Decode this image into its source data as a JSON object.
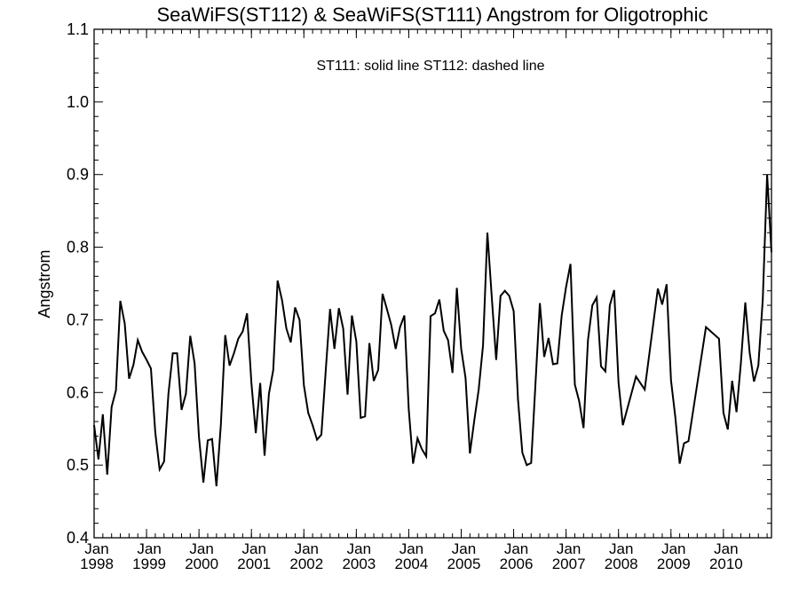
{
  "chart_data": {
    "type": "line",
    "title": "SeaWiFS(ST112) & SeaWiFS(ST111)  Angstrom for Oligotrophic",
    "annotation": "ST111: solid line   ST112: dashed line",
    "xlabel": "",
    "ylabel": "Angstrom",
    "ylim": [
      0.4,
      1.1
    ],
    "y_ticks": [
      "0.4",
      "0.5",
      "0.6",
      "0.7",
      "0.8",
      "0.9",
      "1.0",
      "1.1"
    ],
    "xlim": [
      "1998-01",
      "2010-12"
    ],
    "x_ticks": [
      {
        "month": "Jan",
        "year": "1998"
      },
      {
        "month": "Jan",
        "year": "1999"
      },
      {
        "month": "Jan",
        "year": "2000"
      },
      {
        "month": "Jan",
        "year": "2001"
      },
      {
        "month": "Jan",
        "year": "2002"
      },
      {
        "month": "Jan",
        "year": "2003"
      },
      {
        "month": "Jan",
        "year": "2004"
      },
      {
        "month": "Jan",
        "year": "2005"
      },
      {
        "month": "Jan",
        "year": "2006"
      },
      {
        "month": "Jan",
        "year": "2007"
      },
      {
        "month": "Jan",
        "year": "2008"
      },
      {
        "month": "Jan",
        "year": "2009"
      },
      {
        "month": "Jan",
        "year": "2010"
      }
    ],
    "grid": false,
    "series": [
      {
        "style": "solid",
        "color": "#000000",
        "points": [
          [
            "1998-01",
            0.555
          ],
          [
            "1998-02",
            0.508
          ],
          [
            "1998-03",
            0.57
          ],
          [
            "1998-04",
            0.487
          ],
          [
            "1998-05",
            0.58
          ],
          [
            "1998-06",
            0.603
          ],
          [
            "1998-07",
            0.726
          ],
          [
            "1998-08",
            0.695
          ],
          [
            "1998-09",
            0.619
          ],
          [
            "1998-10",
            0.638
          ],
          [
            "1998-11",
            0.672
          ],
          [
            "1998-12",
            0.656
          ],
          [
            "1999-01",
            0.645
          ],
          [
            "1999-02",
            0.633
          ],
          [
            "1999-03",
            0.545
          ],
          [
            "1999-04",
            0.494
          ],
          [
            "1999-05",
            0.505
          ],
          [
            "1999-06",
            0.598
          ],
          [
            "1999-07",
            0.654
          ],
          [
            "1999-08",
            0.654
          ],
          [
            "1999-09",
            0.576
          ],
          [
            "1999-10",
            0.598
          ],
          [
            "1999-11",
            0.678
          ],
          [
            "1999-12",
            0.64
          ],
          [
            "2000-01",
            0.539
          ],
          [
            "2000-02",
            0.476
          ],
          [
            "2000-03",
            0.534
          ],
          [
            "2000-04",
            0.536
          ],
          [
            "2000-05",
            0.471
          ],
          [
            "2000-06",
            0.556
          ],
          [
            "2000-07",
            0.679
          ],
          [
            "2000-08",
            0.637
          ],
          [
            "2000-09",
            0.654
          ],
          [
            "2000-10",
            0.674
          ],
          [
            "2000-11",
            0.684
          ],
          [
            "2000-12",
            0.709
          ],
          [
            "2001-01",
            0.613
          ],
          [
            "2001-02",
            0.544
          ],
          [
            "2001-03",
            0.613
          ],
          [
            "2001-04",
            0.513
          ],
          [
            "2001-05",
            0.598
          ],
          [
            "2001-06",
            0.631
          ],
          [
            "2001-07",
            0.754
          ],
          [
            "2001-08",
            0.727
          ],
          [
            "2001-09",
            0.688
          ],
          [
            "2001-10",
            0.669
          ],
          [
            "2001-11",
            0.717
          ],
          [
            "2001-12",
            0.7
          ],
          [
            "2002-01",
            0.61
          ],
          [
            "2002-02",
            0.572
          ],
          [
            "2002-03",
            0.555
          ],
          [
            "2002-04",
            0.535
          ],
          [
            "2002-05",
            0.542
          ],
          [
            "2002-06",
            0.63
          ],
          [
            "2002-07",
            0.715
          ],
          [
            "2002-08",
            0.66
          ],
          [
            "2002-09",
            0.716
          ],
          [
            "2002-10",
            0.688
          ],
          [
            "2002-11",
            0.597
          ],
          [
            "2002-12",
            0.706
          ],
          [
            "2003-01",
            0.67
          ],
          [
            "2003-02",
            0.565
          ],
          [
            "2003-03",
            0.567
          ],
          [
            "2003-04",
            0.668
          ],
          [
            "2003-05",
            0.616
          ],
          [
            "2003-06",
            0.631
          ],
          [
            "2003-07",
            0.736
          ],
          [
            "2003-08",
            0.715
          ],
          [
            "2003-09",
            0.693
          ],
          [
            "2003-10",
            0.66
          ],
          [
            "2003-11",
            0.69
          ],
          [
            "2003-12",
            0.706
          ],
          [
            "2004-01",
            0.577
          ],
          [
            "2004-02",
            0.502
          ],
          [
            "2004-03",
            0.537
          ],
          [
            "2004-04",
            0.522
          ],
          [
            "2004-05",
            0.512
          ],
          [
            "2004-06",
            0.705
          ],
          [
            "2004-07",
            0.709
          ],
          [
            "2004-08",
            0.728
          ],
          [
            "2004-09",
            0.685
          ],
          [
            "2004-10",
            0.672
          ],
          [
            "2004-11",
            0.627
          ],
          [
            "2004-12",
            0.744
          ],
          [
            "2005-01",
            0.66
          ],
          [
            "2005-02",
            0.62
          ],
          [
            "2005-03",
            0.516
          ],
          [
            "2005-04",
            0.562
          ],
          [
            "2005-05",
            0.604
          ],
          [
            "2005-06",
            0.665
          ],
          [
            "2005-07",
            0.82
          ],
          [
            "2005-08",
            0.73
          ],
          [
            "2005-09",
            0.645
          ],
          [
            "2005-10",
            0.733
          ],
          [
            "2005-11",
            0.74
          ],
          [
            "2005-12",
            0.733
          ],
          [
            "2006-01",
            0.712
          ],
          [
            "2006-02",
            0.59
          ],
          [
            "2006-03",
            0.517
          ],
          [
            "2006-04",
            0.5
          ],
          [
            "2006-05",
            0.503
          ],
          [
            "2006-06",
            0.613
          ],
          [
            "2006-07",
            0.723
          ],
          [
            "2006-08",
            0.649
          ],
          [
            "2006-09",
            0.675
          ],
          [
            "2006-10",
            0.639
          ],
          [
            "2006-11",
            0.64
          ],
          [
            "2006-12",
            0.706
          ],
          [
            "2007-01",
            0.745
          ],
          [
            "2007-02",
            0.777
          ],
          [
            "2007-03",
            0.611
          ],
          [
            "2007-04",
            0.588
          ],
          [
            "2007-05",
            0.551
          ],
          [
            "2007-06",
            0.672
          ],
          [
            "2007-07",
            0.72
          ],
          [
            "2007-08",
            0.731
          ],
          [
            "2007-09",
            0.636
          ],
          [
            "2007-10",
            0.629
          ],
          [
            "2007-11",
            0.72
          ],
          [
            "2007-12",
            0.741
          ],
          [
            "2008-01",
            0.614
          ],
          [
            "2008-02",
            0.555
          ],
          [
            "2008-05",
            0.622
          ],
          [
            "2008-07",
            0.604
          ],
          [
            "2008-10",
            0.743
          ],
          [
            "2008-11",
            0.721
          ],
          [
            "2008-12",
            0.749
          ],
          [
            "2009-01",
            0.617
          ],
          [
            "2009-02",
            0.566
          ],
          [
            "2009-03",
            0.502
          ],
          [
            "2009-04",
            0.53
          ],
          [
            "2009-05",
            0.533
          ],
          [
            "2009-09",
            0.69
          ],
          [
            "2009-12",
            0.674
          ],
          [
            "2010-01",
            0.572
          ],
          [
            "2010-02",
            0.549
          ],
          [
            "2010-03",
            0.616
          ],
          [
            "2010-04",
            0.573
          ],
          [
            "2010-05",
            0.64
          ],
          [
            "2010-06",
            0.724
          ],
          [
            "2010-07",
            0.655
          ],
          [
            "2010-08",
            0.615
          ],
          [
            "2010-09",
            0.637
          ],
          [
            "2010-10",
            0.728
          ],
          [
            "2010-11",
            0.9
          ],
          [
            "2010-12",
            0.793
          ]
        ]
      }
    ]
  }
}
